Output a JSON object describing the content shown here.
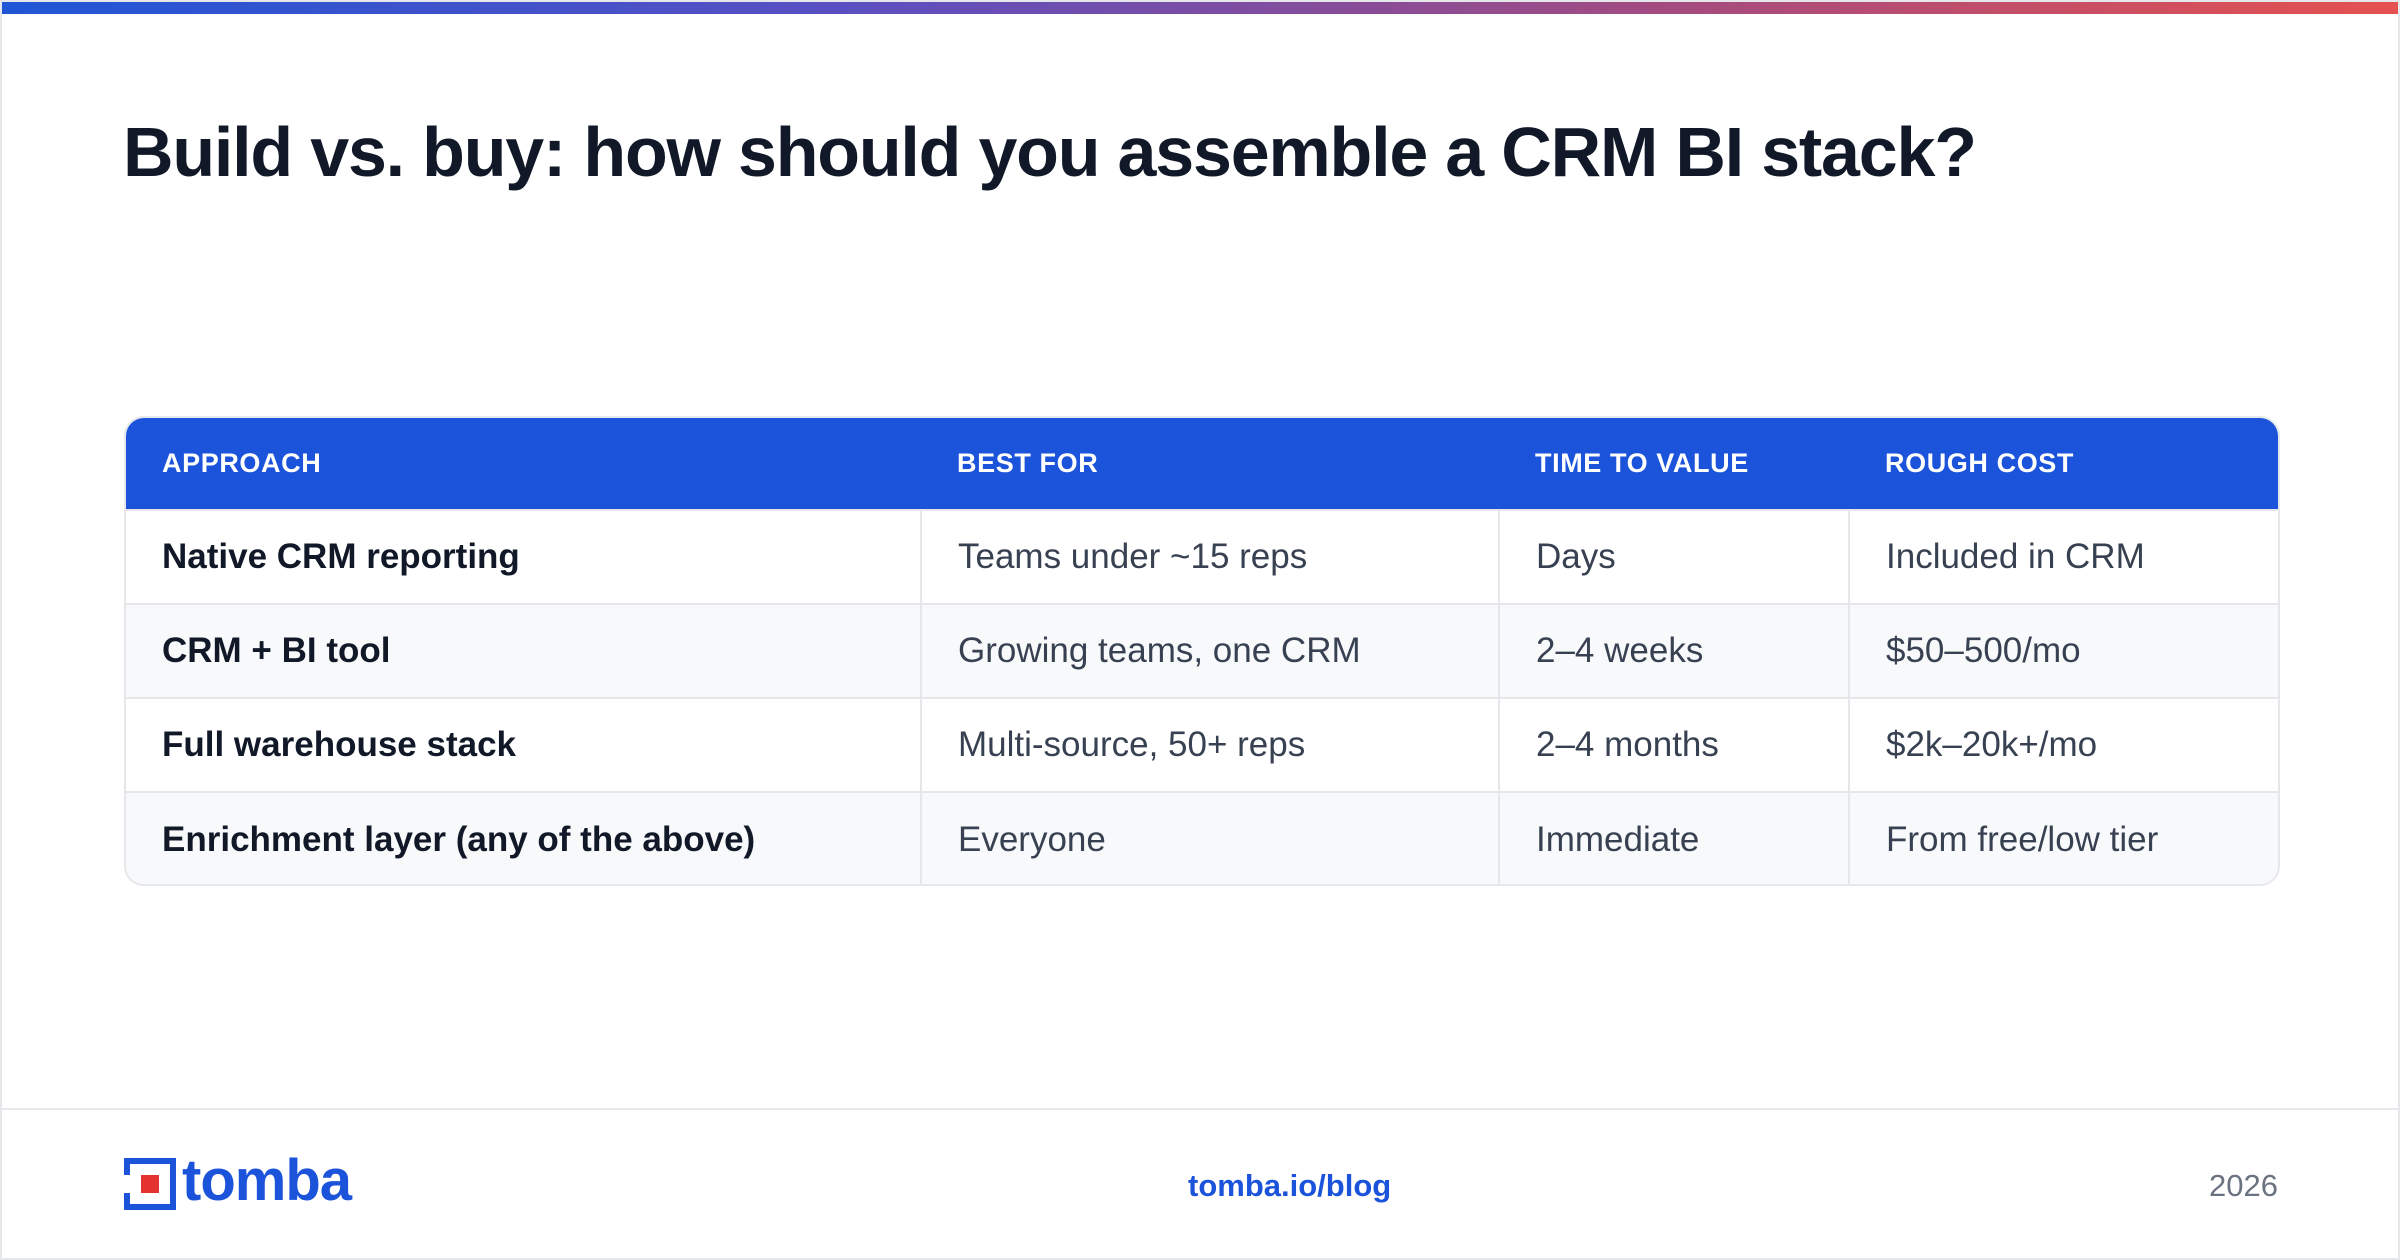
{
  "title": "Build vs. buy: how should you assemble a CRM BI stack?",
  "table": {
    "headers": [
      "APPROACH",
      "BEST FOR",
      "TIME TO VALUE",
      "ROUGH COST"
    ],
    "rows": [
      [
        "Native CRM reporting",
        "Teams under ~15 reps",
        "Days",
        "Included in CRM"
      ],
      [
        "CRM + BI tool",
        "Growing teams, one CRM",
        "2–4 weeks",
        "$50–500/mo"
      ],
      [
        "Full warehouse stack",
        "Multi-source, 50+ reps",
        "2–4 months",
        "$2k–20k+/mo"
      ],
      [
        "Enrichment layer (any of the above)",
        "Everyone",
        "Immediate",
        "From free/low tier"
      ]
    ]
  },
  "footer": {
    "logo_text": "tomba",
    "link": "tomba.io/blog",
    "year": "2026"
  },
  "colors": {
    "accent": "#1b53db",
    "logo_red": "#e5312f",
    "gradient_start": "#1f56d6",
    "gradient_end": "#e5514f"
  },
  "icons": {
    "logo": "tomba-logo-icon"
  }
}
